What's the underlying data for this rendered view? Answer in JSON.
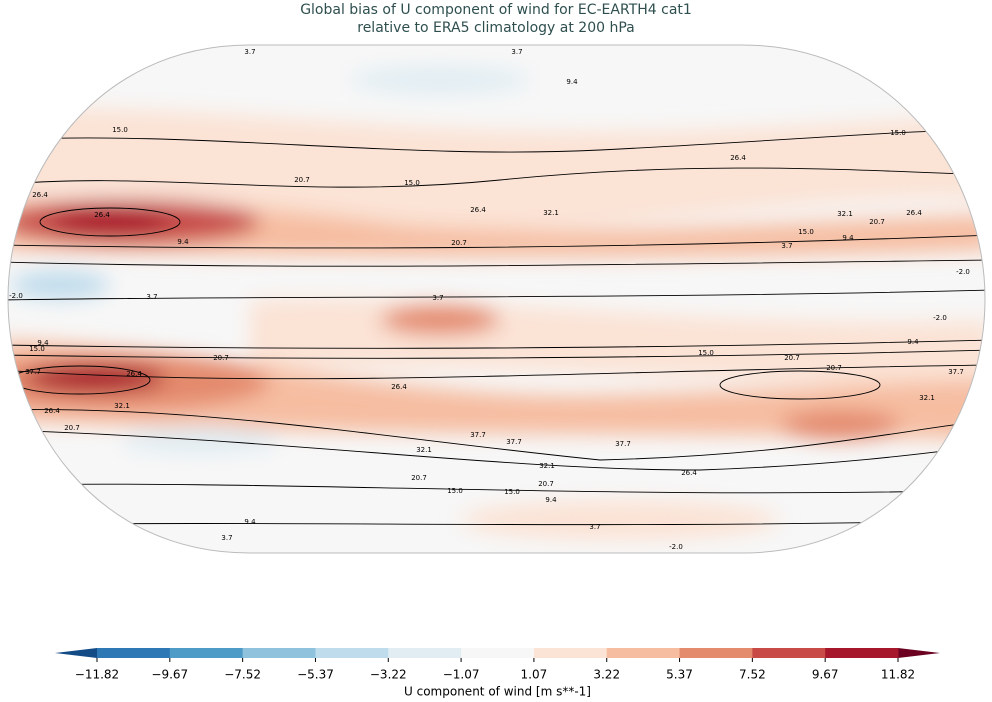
{
  "header": {
    "title_lines": [
      "Global bias of U component of wind for EC-EARTH4 cat1",
      "relative to ERA5 climatology at 200 hPa"
    ]
  },
  "map": {
    "contour_labels": [
      "3.7",
      "3.7",
      "9.4",
      "15.0",
      "15.0",
      "26.4",
      "26.4",
      "20.7",
      "15.0",
      "26.4",
      "32.1",
      "20.7",
      "9.4",
      "3.7",
      "-2.0",
      "3.7",
      "26.4",
      "15.0",
      "32.1",
      "20.7",
      "26.4",
      "9.4",
      "3.7",
      "-2.0",
      "-2.0",
      "9.4",
      "15.0",
      "20.7",
      "26.4",
      "37.7",
      "9.4",
      "15.0",
      "20.7",
      "37.7",
      "32.1",
      "26.4",
      "20.7",
      "26.4",
      "32.1",
      "37.7",
      "37.7",
      "37.7",
      "32.1",
      "26.4",
      "20.7",
      "15.0",
      "15.0",
      "20.7",
      "9.4",
      "9.4",
      "3.7",
      "3.7",
      "-2.0",
      "32.1",
      "20.7"
    ]
  },
  "colorbar": {
    "label": "U component of wind [m s**-1]",
    "ticks": [
      {
        "value": -11.82,
        "label": "−11.82"
      },
      {
        "value": -9.67,
        "label": "−9.67"
      },
      {
        "value": -7.52,
        "label": "−7.52"
      },
      {
        "value": -5.37,
        "label": "−5.37"
      },
      {
        "value": -3.22,
        "label": "−3.22"
      },
      {
        "value": -1.07,
        "label": "−1.07"
      },
      1.07,
      3.22,
      5.37,
      7.52,
      9.67,
      11.82
    ],
    "colors": [
      "#2e78b5",
      "#4f9bc7",
      "#8ec2dd",
      "#bfdcec",
      "#e1edf3",
      "#f7f7f7",
      "#fbe3d5",
      "#f6bda1",
      "#e48a6d",
      "#c84b48",
      "#a7172b"
    ],
    "extend_colors": [
      "#134b87",
      "#6b0021"
    ]
  }
}
